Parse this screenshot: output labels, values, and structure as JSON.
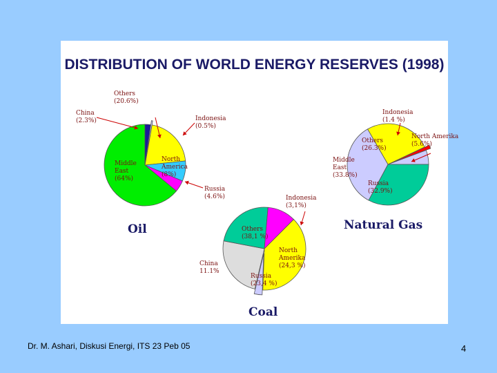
{
  "slide": {
    "title": "DISTRIBUTION OF WORLD ENERGY RESERVES (1998)",
    "footer": "Dr. M. Ashari, Diskusi Energi, ITS 23 Peb 05",
    "page_number": "4"
  },
  "chart_data": [
    {
      "type": "pie",
      "name": "Oil",
      "slices": [
        {
          "label": "Others",
          "pct_label": "(20.6%)",
          "value": 20.6,
          "color": "#ffff00"
        },
        {
          "label": "North America",
          "pct_label": "(8%)",
          "value": 8.0,
          "color": "#33ccff"
        },
        {
          "label": "Russia",
          "pct_label": "(4.6%)",
          "value": 4.6,
          "color": "#ff00ff"
        },
        {
          "label": "Middle East",
          "pct_label": "(64%)",
          "value": 64.0,
          "color": "#00ee00"
        },
        {
          "label": "China",
          "pct_label": "(2.3%)",
          "value": 2.3,
          "color": "#1a1a99"
        },
        {
          "label": "Indonesia",
          "pct_label": "(0.5%)",
          "value": 0.5,
          "color": "#ccccff"
        }
      ]
    },
    {
      "type": "pie",
      "name": "Natural Gas",
      "slices": [
        {
          "label": "Others",
          "pct_label": "(26.3%)",
          "value": 26.3,
          "color": "#ffff00"
        },
        {
          "label": "Indonesia",
          "pct_label": "(1.4 %)",
          "value": 1.4,
          "color": "#ff0000"
        },
        {
          "label": "North Amerika",
          "pct_label": "(5.6%)",
          "value": 5.6,
          "color": "#ccccff"
        },
        {
          "label": "Russia",
          "pct_label": "(32.9%)",
          "value": 32.9,
          "color": "#00cc99"
        },
        {
          "label": "Middle East",
          "pct_label": "(33.8%)",
          "value": 33.8,
          "color": "#ccccff"
        }
      ]
    },
    {
      "type": "pie",
      "name": "Coal",
      "slices": [
        {
          "label": "Others",
          "pct_label": "(38,1 %)",
          "value": 38.1,
          "color": "#ffff00"
        },
        {
          "label": "Indonesia",
          "pct_label": "(3,1%)",
          "value": 3.1,
          "color": "#ccccff"
        },
        {
          "label": "North Amerika",
          "pct_label": "(24,3 %)",
          "value": 24.3,
          "color": "#dddddd"
        },
        {
          "label": "Russia",
          "pct_label": "(23,4 %)",
          "value": 23.4,
          "color": "#00cc99"
        },
        {
          "label": "China",
          "pct_label": "11.1%",
          "value": 11.1,
          "color": "#ff00ff"
        }
      ]
    }
  ]
}
